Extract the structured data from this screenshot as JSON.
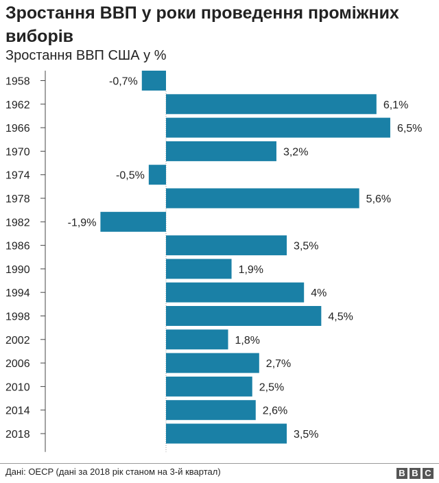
{
  "header": {
    "title": "Зростання ВВП у роки проведення проміжних виборів",
    "subtitle": "Зростання ВВП США у %"
  },
  "footer": {
    "source": "Дані: OECP (дані за 2018 рік станом на 3-й квартал)",
    "logo_letters": [
      "B",
      "B",
      "C"
    ]
  },
  "colors": {
    "bar": "#1a80a6",
    "axis": "#999999",
    "text": "#222222"
  },
  "chart_data": {
    "type": "bar",
    "orientation": "horizontal",
    "title": "Зростання ВВП у роки проведення проміжних виборів",
    "subtitle": "Зростання ВВП США у %",
    "categories": [
      "1958",
      "1962",
      "1966",
      "1970",
      "1974",
      "1978",
      "1982",
      "1986",
      "1990",
      "1994",
      "1998",
      "2002",
      "2006",
      "2010",
      "2014",
      "2018"
    ],
    "values": [
      -0.7,
      6.1,
      6.5,
      3.2,
      -0.5,
      5.6,
      -1.9,
      3.5,
      1.9,
      4,
      4.5,
      1.8,
      2.7,
      2.5,
      2.6,
      3.5
    ],
    "value_labels": [
      "-0,7%",
      "6,1%",
      "6,5%",
      "3,2%",
      "-0,5%",
      "5,6%",
      "-1,9%",
      "3,5%",
      "1,9%",
      "4%",
      "4,5%",
      "1,8%",
      "2,7%",
      "2,5%",
      "2,6%",
      "3,5%"
    ],
    "xlim": [
      -3.5,
      6.5
    ],
    "grid": false,
    "legend": "none"
  }
}
